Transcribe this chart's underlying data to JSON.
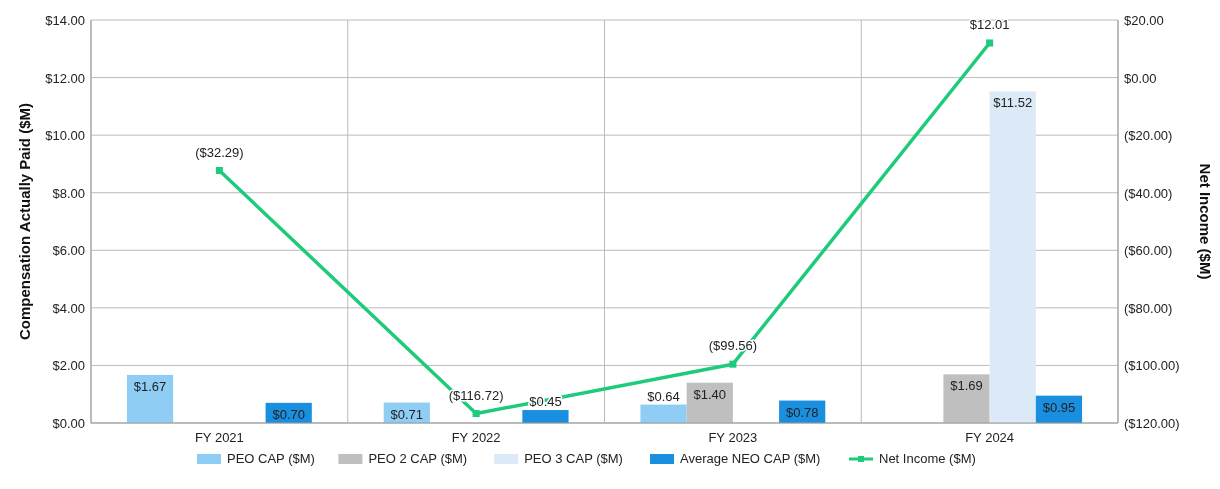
{
  "chart_data": {
    "type": "bar",
    "ylabel": "Compensation Actually Paid ($M)",
    "y2label": "Net Income ($M)",
    "categories": [
      "FY 2021",
      "FY 2022",
      "FY 2023",
      "FY 2024"
    ],
    "series": [
      {
        "name": "PEO CAP ($M)",
        "color": "#8fcdf5",
        "values": [
          1.67,
          0.71,
          0.64,
          null
        ],
        "value_labels": [
          "$1.67",
          "$0.71",
          "$0.64",
          null
        ]
      },
      {
        "name": "PEO 2 CAP ($M)",
        "color": "#bfbfbf",
        "values": [
          null,
          null,
          1.4,
          1.69
        ],
        "value_labels": [
          null,
          null,
          "$1.40",
          "$1.69"
        ]
      },
      {
        "name": "PEO 3 CAP ($M)",
        "color": "#dce9f7",
        "values": [
          null,
          null,
          null,
          11.52
        ],
        "value_labels": [
          null,
          null,
          null,
          "$11.52"
        ]
      },
      {
        "name": "Average NEO CAP ($M)",
        "color": "#1a8fdf",
        "values": [
          0.7,
          0.45,
          0.78,
          0.95
        ],
        "value_labels": [
          "$0.70",
          "$0.45",
          "$0.78",
          "$0.95"
        ]
      },
      {
        "name": "Net Income ($M)",
        "type": "line",
        "axis": "y2",
        "color": "#1ecb7c",
        "marker": "square",
        "values": [
          -32.29,
          -116.72,
          -99.56,
          12.01
        ],
        "value_labels": [
          "($32.29)",
          "($116.72)",
          "($99.56)",
          "$12.01"
        ]
      }
    ],
    "ylim": [
      0,
      14
    ],
    "yticks": [
      {
        "value": 0,
        "label": "$0.00"
      },
      {
        "value": 2,
        "label": "$2.00"
      },
      {
        "value": 4,
        "label": "$4.00"
      },
      {
        "value": 6,
        "label": "$6.00"
      },
      {
        "value": 8,
        "label": "$8.00"
      },
      {
        "value": 10,
        "label": "$10.00"
      },
      {
        "value": 12,
        "label": "$12.00"
      },
      {
        "value": 14,
        "label": "$14.00"
      }
    ],
    "y2lim": [
      -120,
      20
    ],
    "y2ticks": [
      {
        "value": -120,
        "label": "($120.00)"
      },
      {
        "value": -100,
        "label": "($100.00)"
      },
      {
        "value": -80,
        "label": "($80.00)"
      },
      {
        "value": -60,
        "label": "($60.00)"
      },
      {
        "value": -40,
        "label": "($40.00)"
      },
      {
        "value": -20,
        "label": "($20.00)"
      },
      {
        "value": 0,
        "label": "$0.00"
      },
      {
        "value": 20,
        "label": "$20.00"
      }
    ],
    "grid": true,
    "legend": "bottom"
  }
}
